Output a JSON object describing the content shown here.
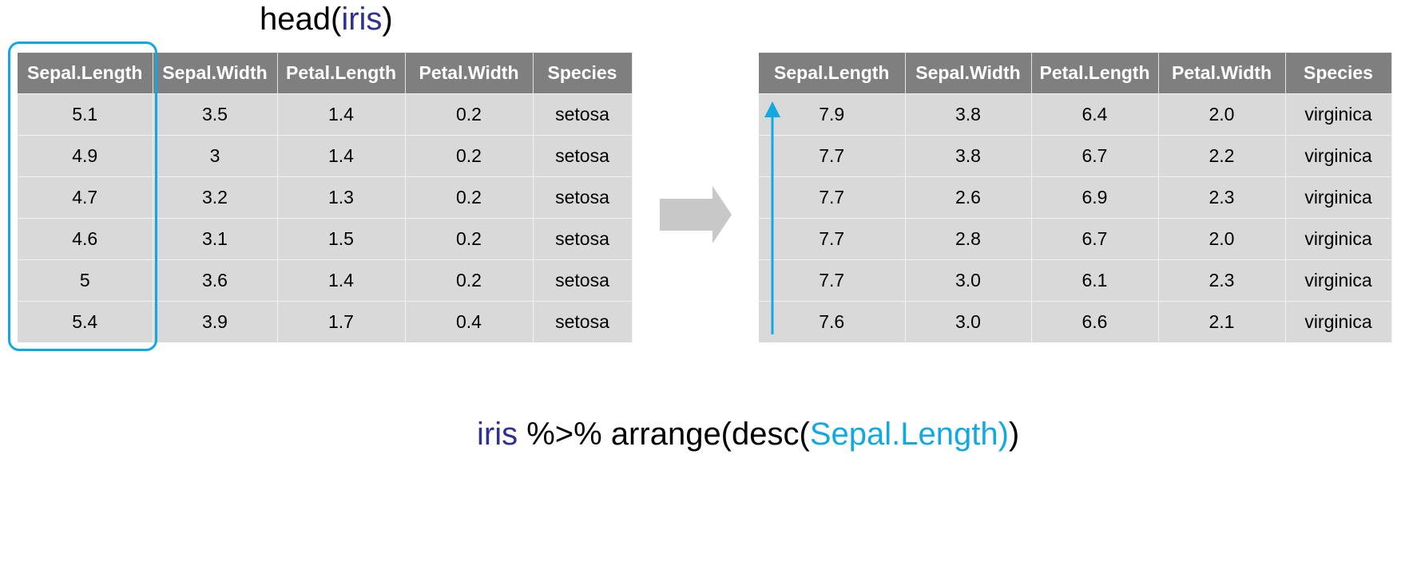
{
  "title": {
    "fn": "head(",
    "arg": "iris",
    "close": ")"
  },
  "left_table": {
    "headers": [
      "Sepal.Length",
      "Sepal.Width",
      "Petal.Length",
      "Petal.Width",
      "Species"
    ],
    "rows": [
      [
        "5.1",
        "3.5",
        "1.4",
        "0.2",
        "setosa"
      ],
      [
        "4.9",
        "3",
        "1.4",
        "0.2",
        "setosa"
      ],
      [
        "4.7",
        "3.2",
        "1.3",
        "0.2",
        "setosa"
      ],
      [
        "4.6",
        "3.1",
        "1.5",
        "0.2",
        "setosa"
      ],
      [
        "5",
        "3.6",
        "1.4",
        "0.2",
        "setosa"
      ],
      [
        "5.4",
        "3.9",
        "1.7",
        "0.4",
        "setosa"
      ]
    ]
  },
  "right_table": {
    "headers": [
      "Sepal.Length",
      "Sepal.Width",
      "Petal.Length",
      "Petal.Width",
      "Species"
    ],
    "rows": [
      [
        "7.9",
        "3.8",
        "6.4",
        "2.0",
        "virginica"
      ],
      [
        "7.7",
        "3.8",
        "6.7",
        "2.2",
        "virginica"
      ],
      [
        "7.7",
        "2.6",
        "6.9",
        "2.3",
        "virginica"
      ],
      [
        "7.7",
        "2.8",
        "6.7",
        "2.0",
        "virginica"
      ],
      [
        "7.7",
        "3.0",
        "6.1",
        "2.3",
        "virginica"
      ],
      [
        "7.6",
        "3.0",
        "6.6",
        "2.1",
        "virginica"
      ]
    ]
  },
  "code": {
    "obj": "iris",
    "pipe": " %>% arrange(desc(",
    "col": "Sepal.Length)",
    "close": ")"
  },
  "colors": {
    "accent": "#12a9e0",
    "object": "#2e3192",
    "header": "#7f7f7f",
    "cell": "#d9d9d9",
    "arrow": "#c8c8c8"
  },
  "icons": {
    "transform": "right-arrow-icon",
    "sort": "up-arrow-icon"
  }
}
